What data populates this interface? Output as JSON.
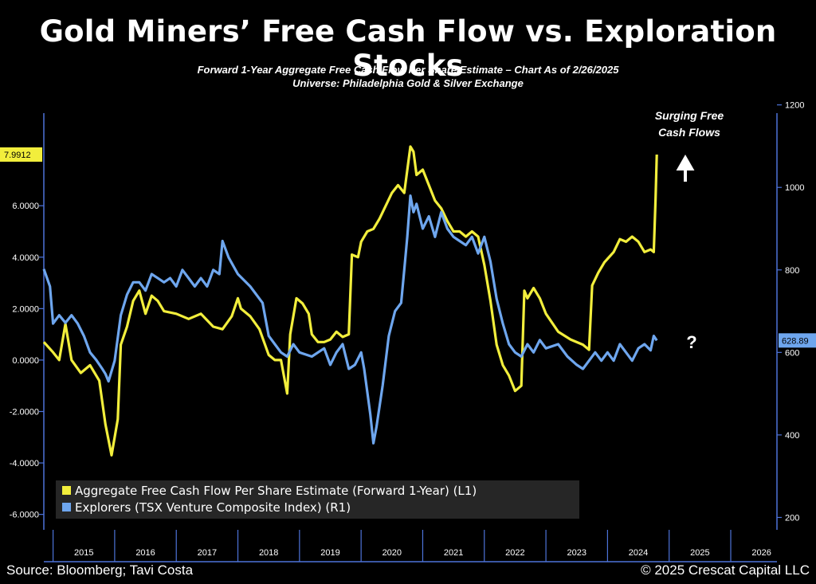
{
  "header": {
    "title": "Gold Miners’ Free Cash Flow vs. Exploration Stocks",
    "subtitle_line1": "Forward 1-Year Aggregate Free Cash Flow Per Share Estimate – Chart As of 2/26/2025",
    "subtitle_line2": "Universe: Philadelphia Gold & Silver Exchange"
  },
  "footer": {
    "source": "Source: Bloomberg; Tavi Costa",
    "copyright": "© 2025 Crescat Capital LLC"
  },
  "colors": {
    "fcf_series": "#f2ee3c",
    "explorers_series": "#6ea6ee",
    "axis": "#4d73d9",
    "background": "#000000"
  },
  "chart_data": {
    "type": "line",
    "x_tick_labels": [
      "2015",
      "2016",
      "2017",
      "2018",
      "2019",
      "2020",
      "2021",
      "2022",
      "2023",
      "2024",
      "2025",
      "2026"
    ],
    "xlim": [
      2014.85,
      2026.75
    ],
    "left_axis": {
      "ticks": [
        -6,
        -4,
        -2,
        0,
        2,
        4,
        6
      ],
      "tick_labels": [
        "-6.0000",
        "-4.0000",
        "-2.0000",
        "0.0000",
        "2.0000",
        "4.0000",
        "6.0000"
      ],
      "ylim": [
        -6.6,
        9.6
      ]
    },
    "right_axis": {
      "ticks": [
        200,
        400,
        600,
        800,
        1000,
        1200
      ],
      "tick_labels": [
        "200",
        "400",
        "600",
        "800",
        "1000",
        "1200"
      ],
      "ylim": [
        170,
        1180
      ]
    },
    "last_value_labels": {
      "left": "7.9912",
      "right": "628.89"
    },
    "annotations": {
      "surging_line1": "Surging Free",
      "surging_line2": "Cash Flows",
      "question": "?"
    },
    "legend": {
      "position": "bottom-left"
    },
    "series": [
      {
        "name": "Aggregate Free Cash Flow Per Share Estimate (Forward 1-Year) (L1)",
        "axis": "left",
        "points": [
          [
            2014.85,
            0.7
          ],
          [
            2015.0,
            0.3
          ],
          [
            2015.1,
            0.0
          ],
          [
            2015.2,
            1.4
          ],
          [
            2015.3,
            0.0
          ],
          [
            2015.45,
            -0.5
          ],
          [
            2015.6,
            -0.2
          ],
          [
            2015.75,
            -0.8
          ],
          [
            2015.85,
            -2.5
          ],
          [
            2015.95,
            -3.7
          ],
          [
            2016.0,
            -3.0
          ],
          [
            2016.05,
            -2.3
          ],
          [
            2016.1,
            0.6
          ],
          [
            2016.2,
            1.3
          ],
          [
            2016.3,
            2.3
          ],
          [
            2016.4,
            2.7
          ],
          [
            2016.5,
            1.8
          ],
          [
            2016.6,
            2.5
          ],
          [
            2016.7,
            2.3
          ],
          [
            2016.8,
            1.9
          ],
          [
            2017.0,
            1.8
          ],
          [
            2017.2,
            1.6
          ],
          [
            2017.4,
            1.8
          ],
          [
            2017.6,
            1.3
          ],
          [
            2017.75,
            1.2
          ],
          [
            2017.9,
            1.7
          ],
          [
            2018.0,
            2.4
          ],
          [
            2018.05,
            2.0
          ],
          [
            2018.2,
            1.7
          ],
          [
            2018.35,
            1.2
          ],
          [
            2018.5,
            0.2
          ],
          [
            2018.6,
            0.0
          ],
          [
            2018.7,
            0.0
          ],
          [
            2018.8,
            -1.3
          ],
          [
            2018.85,
            1.0
          ],
          [
            2018.95,
            2.4
          ],
          [
            2019.05,
            2.2
          ],
          [
            2019.15,
            1.8
          ],
          [
            2019.2,
            1.0
          ],
          [
            2019.3,
            0.7
          ],
          [
            2019.4,
            0.7
          ],
          [
            2019.5,
            0.8
          ],
          [
            2019.6,
            1.1
          ],
          [
            2019.7,
            0.9
          ],
          [
            2019.8,
            1.0
          ],
          [
            2019.85,
            4.1
          ],
          [
            2019.95,
            4.0
          ],
          [
            2020.0,
            4.6
          ],
          [
            2020.1,
            5.0
          ],
          [
            2020.2,
            5.1
          ],
          [
            2020.3,
            5.5
          ],
          [
            2020.4,
            6.0
          ],
          [
            2020.5,
            6.5
          ],
          [
            2020.6,
            6.8
          ],
          [
            2020.7,
            6.5
          ],
          [
            2020.8,
            8.3
          ],
          [
            2020.85,
            8.1
          ],
          [
            2020.9,
            7.2
          ],
          [
            2021.0,
            7.4
          ],
          [
            2021.1,
            6.8
          ],
          [
            2021.2,
            6.2
          ],
          [
            2021.3,
            5.9
          ],
          [
            2021.4,
            5.4
          ],
          [
            2021.5,
            5.0
          ],
          [
            2021.6,
            5.0
          ],
          [
            2021.7,
            4.8
          ],
          [
            2021.8,
            5.0
          ],
          [
            2021.9,
            4.8
          ],
          [
            2022.0,
            3.7
          ],
          [
            2022.1,
            2.3
          ],
          [
            2022.2,
            0.6
          ],
          [
            2022.3,
            -0.2
          ],
          [
            2022.4,
            -0.6
          ],
          [
            2022.5,
            -1.2
          ],
          [
            2022.6,
            -1.0
          ],
          [
            2022.65,
            2.7
          ],
          [
            2022.7,
            2.4
          ],
          [
            2022.8,
            2.8
          ],
          [
            2022.9,
            2.4
          ],
          [
            2023.0,
            1.8
          ],
          [
            2023.2,
            1.1
          ],
          [
            2023.4,
            0.8
          ],
          [
            2023.6,
            0.6
          ],
          [
            2023.7,
            0.4
          ],
          [
            2023.75,
            2.9
          ],
          [
            2023.85,
            3.4
          ],
          [
            2023.95,
            3.8
          ],
          [
            2024.1,
            4.2
          ],
          [
            2024.2,
            4.7
          ],
          [
            2024.3,
            4.6
          ],
          [
            2024.4,
            4.8
          ],
          [
            2024.5,
            4.6
          ],
          [
            2024.6,
            4.2
          ],
          [
            2024.7,
            4.3
          ],
          [
            2024.75,
            4.2
          ],
          [
            2024.78,
            6.3
          ],
          [
            2024.8,
            7.99
          ]
        ]
      },
      {
        "name": "Explorers (TSX Venture Composite Index) (R1)",
        "axis": "right",
        "points": [
          [
            2014.85,
            802
          ],
          [
            2014.95,
            760
          ],
          [
            2015.0,
            670
          ],
          [
            2015.1,
            690
          ],
          [
            2015.2,
            672
          ],
          [
            2015.3,
            690
          ],
          [
            2015.4,
            670
          ],
          [
            2015.5,
            640
          ],
          [
            2015.6,
            600
          ],
          [
            2015.7,
            582
          ],
          [
            2015.8,
            560
          ],
          [
            2015.85,
            548
          ],
          [
            2015.9,
            530
          ],
          [
            2016.0,
            580
          ],
          [
            2016.1,
            690
          ],
          [
            2016.2,
            740
          ],
          [
            2016.3,
            770
          ],
          [
            2016.4,
            770
          ],
          [
            2016.5,
            750
          ],
          [
            2016.6,
            790
          ],
          [
            2016.7,
            780
          ],
          [
            2016.8,
            770
          ],
          [
            2016.9,
            780
          ],
          [
            2017.0,
            760
          ],
          [
            2017.1,
            800
          ],
          [
            2017.2,
            780
          ],
          [
            2017.3,
            760
          ],
          [
            2017.4,
            780
          ],
          [
            2017.5,
            760
          ],
          [
            2017.6,
            800
          ],
          [
            2017.7,
            790
          ],
          [
            2017.75,
            870
          ],
          [
            2017.85,
            830
          ],
          [
            2018.0,
            790
          ],
          [
            2018.2,
            760
          ],
          [
            2018.4,
            720
          ],
          [
            2018.5,
            640
          ],
          [
            2018.6,
            620
          ],
          [
            2018.7,
            600
          ],
          [
            2018.8,
            590
          ],
          [
            2018.9,
            620
          ],
          [
            2019.0,
            600
          ],
          [
            2019.2,
            590
          ],
          [
            2019.4,
            610
          ],
          [
            2019.5,
            570
          ],
          [
            2019.6,
            600
          ],
          [
            2019.7,
            620
          ],
          [
            2019.8,
            560
          ],
          [
            2019.9,
            570
          ],
          [
            2020.0,
            600
          ],
          [
            2020.05,
            560
          ],
          [
            2020.15,
            450
          ],
          [
            2020.2,
            380
          ],
          [
            2020.25,
            420
          ],
          [
            2020.35,
            520
          ],
          [
            2020.45,
            640
          ],
          [
            2020.55,
            700
          ],
          [
            2020.65,
            720
          ],
          [
            2020.7,
            800
          ],
          [
            2020.75,
            880
          ],
          [
            2020.8,
            980
          ],
          [
            2020.85,
            940
          ],
          [
            2020.9,
            960
          ],
          [
            2021.0,
            900
          ],
          [
            2021.1,
            930
          ],
          [
            2021.2,
            880
          ],
          [
            2021.3,
            940
          ],
          [
            2021.4,
            900
          ],
          [
            2021.5,
            880
          ],
          [
            2021.6,
            870
          ],
          [
            2021.7,
            860
          ],
          [
            2021.8,
            880
          ],
          [
            2021.9,
            840
          ],
          [
            2022.0,
            880
          ],
          [
            2022.1,
            820
          ],
          [
            2022.2,
            730
          ],
          [
            2022.3,
            670
          ],
          [
            2022.4,
            620
          ],
          [
            2022.5,
            600
          ],
          [
            2022.6,
            590
          ],
          [
            2022.7,
            620
          ],
          [
            2022.8,
            600
          ],
          [
            2022.9,
            630
          ],
          [
            2023.0,
            610
          ],
          [
            2023.2,
            620
          ],
          [
            2023.35,
            590
          ],
          [
            2023.5,
            570
          ],
          [
            2023.6,
            560
          ],
          [
            2023.7,
            580
          ],
          [
            2023.8,
            600
          ],
          [
            2023.9,
            580
          ],
          [
            2024.0,
            600
          ],
          [
            2024.1,
            580
          ],
          [
            2024.2,
            620
          ],
          [
            2024.3,
            600
          ],
          [
            2024.4,
            580
          ],
          [
            2024.5,
            610
          ],
          [
            2024.6,
            620
          ],
          [
            2024.7,
            605
          ],
          [
            2024.75,
            640
          ],
          [
            2024.8,
            629
          ]
        ]
      }
    ]
  }
}
